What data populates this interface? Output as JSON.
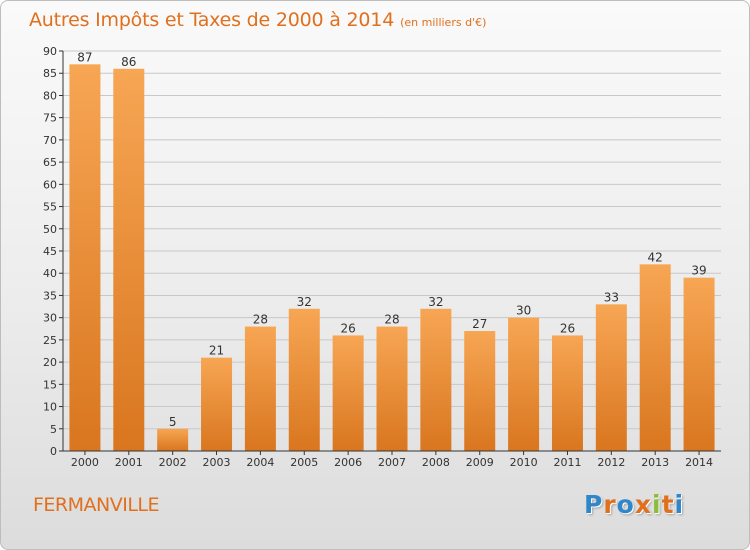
{
  "header": {
    "title": "Autres Impôts et Taxes de 2000 à 2014",
    "subtitle": "(en milliers d'€)"
  },
  "footer": {
    "city": "FERMANVILLE",
    "logo_text": "Proxiti",
    "logo_colors": [
      "#2f86c8",
      "#e0701e",
      "#2f86c8",
      "#e0701e",
      "#8cbd3a",
      "#e0701e",
      "#2f86c8"
    ]
  },
  "colors": {
    "accent": "#e0701e",
    "bar_top": "#f7a654",
    "bar_bottom": "#d9761f",
    "grid": "#c8c8c8",
    "axis": "#333333"
  },
  "chart_data": {
    "type": "bar",
    "categories": [
      "2000",
      "2001",
      "2002",
      "2003",
      "2004",
      "2005",
      "2006",
      "2007",
      "2008",
      "2009",
      "2010",
      "2011",
      "2012",
      "2013",
      "2014"
    ],
    "values": [
      87,
      86,
      5,
      21,
      28,
      32,
      26,
      28,
      32,
      27,
      30,
      26,
      33,
      42,
      39
    ],
    "ylim": [
      0,
      90
    ],
    "yticks": [
      0,
      5,
      10,
      15,
      20,
      25,
      30,
      35,
      40,
      45,
      50,
      55,
      60,
      65,
      70,
      75,
      80,
      85,
      90
    ],
    "grid": true,
    "data_labels": true
  }
}
